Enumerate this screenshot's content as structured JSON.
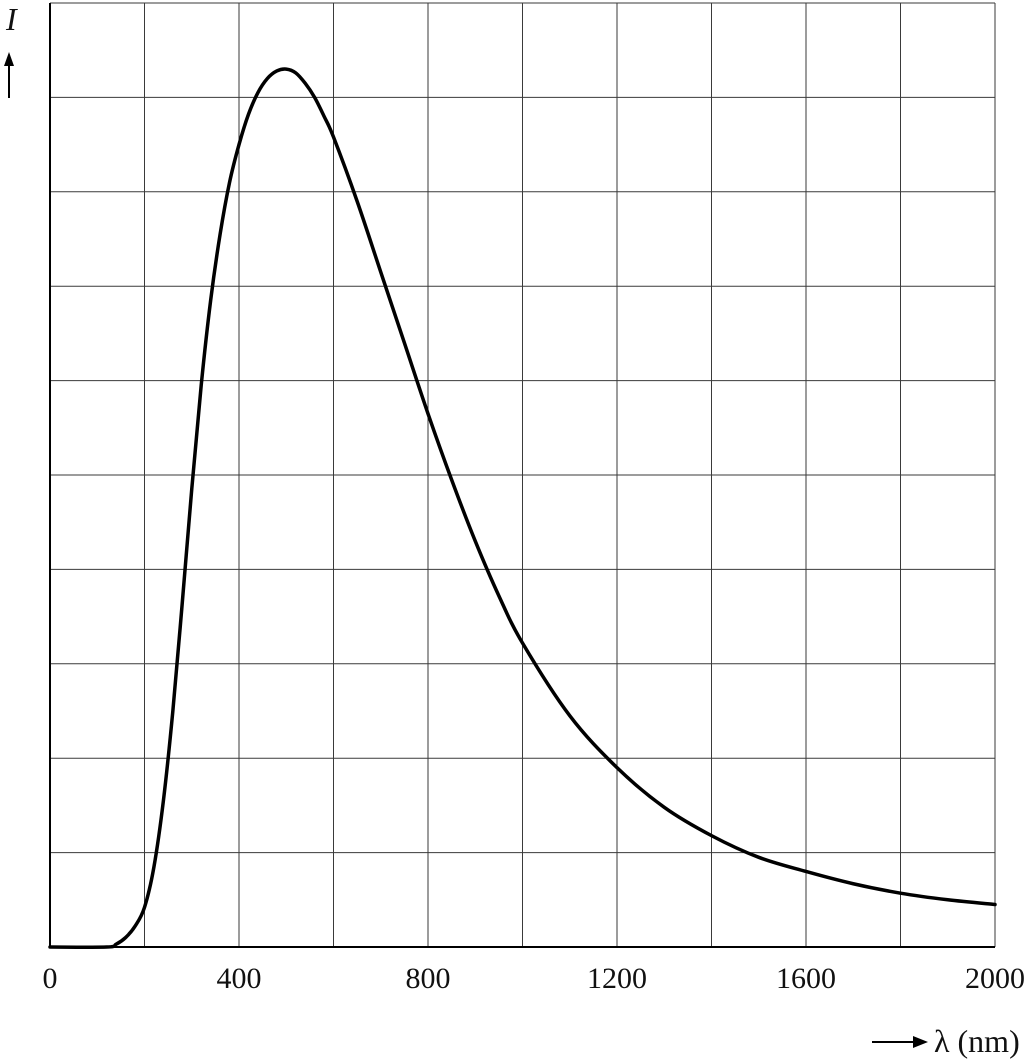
{
  "chart_data": {
    "type": "line",
    "title": "",
    "xlabel": "λ (nm)",
    "ylabel": "I",
    "xlim": [
      0,
      2000
    ],
    "ylim": [
      0,
      10
    ],
    "x_ticks": [
      0,
      200,
      400,
      600,
      800,
      1000,
      1200,
      1400,
      1600,
      1800,
      2000
    ],
    "x_tick_labels": [
      "0",
      "400",
      "800",
      "1200",
      "1600",
      "2000"
    ],
    "grid": true,
    "y_tick_labels_shown": false,
    "series": [
      {
        "color": "#000000",
        "x": [
          0,
          120,
          140,
          160,
          180,
          200,
          220,
          240,
          260,
          280,
          300,
          320,
          340,
          360,
          380,
          400,
          420,
          440,
          460,
          480,
          500,
          520,
          540,
          560,
          580,
          600,
          650,
          700,
          750,
          800,
          850,
          900,
          950,
          1000,
          1100,
          1200,
          1300,
          1400,
          1500,
          1600,
          1700,
          1800,
          1900,
          2000
        ],
        "y": [
          0,
          0,
          0.03,
          0.1,
          0.22,
          0.42,
          0.85,
          1.55,
          2.5,
          3.65,
          4.85,
          5.95,
          6.85,
          7.55,
          8.1,
          8.5,
          8.82,
          9.05,
          9.2,
          9.28,
          9.3,
          9.26,
          9.15,
          9.0,
          8.8,
          8.58,
          7.9,
          7.15,
          6.4,
          5.65,
          4.95,
          4.3,
          3.72,
          3.22,
          2.45,
          1.9,
          1.48,
          1.18,
          0.95,
          0.8,
          0.67,
          0.57,
          0.5,
          0.45
        ]
      }
    ]
  }
}
